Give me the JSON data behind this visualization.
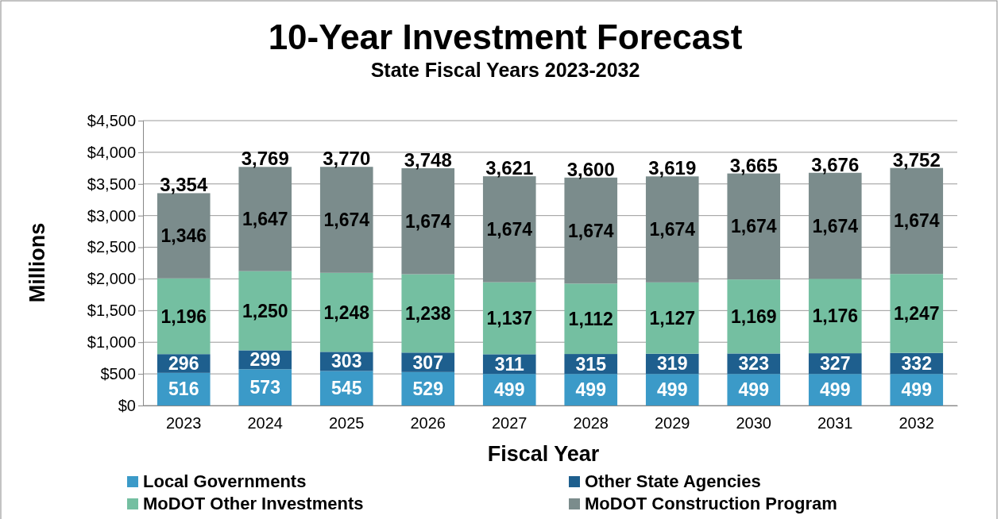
{
  "chart_data": {
    "type": "bar",
    "title": "10-Year Investment Forecast",
    "subtitle": "State Fiscal Years 2023-2032",
    "xlabel": "Fiscal Year",
    "ylabel": "Millions",
    "categories": [
      "2023",
      "2024",
      "2025",
      "2026",
      "2027",
      "2028",
      "2029",
      "2030",
      "2031",
      "2032"
    ],
    "stacked": true,
    "grid": "y",
    "legend": "bottom",
    "ylim": [
      0,
      4500
    ],
    "yticks": [
      {
        "value": 0,
        "label": "$0"
      },
      {
        "value": 500,
        "label": "$500"
      },
      {
        "value": 1000,
        "label": "$1,000"
      },
      {
        "value": 1500,
        "label": "$1,500"
      },
      {
        "value": 2000,
        "label": "$2,000"
      },
      {
        "value": 2500,
        "label": "$2,500"
      },
      {
        "value": 3000,
        "label": "$3,000"
      },
      {
        "value": 3500,
        "label": "$3,500"
      },
      {
        "value": 4000,
        "label": "$4,000"
      },
      {
        "value": 4500,
        "label": "$4,500"
      }
    ],
    "series": [
      {
        "name": "Local Governments",
        "color": "#3b9ac8",
        "values": [
          516,
          573,
          545,
          529,
          499,
          499,
          499,
          499,
          499,
          499
        ],
        "value_labels": [
          "516",
          "573",
          "545",
          "529",
          "499",
          "499",
          "499",
          "499",
          "499",
          "499"
        ]
      },
      {
        "name": "Other State Agencies",
        "color": "#1e5f8e",
        "values": [
          296,
          299,
          303,
          307,
          311,
          315,
          319,
          323,
          327,
          332
        ],
        "value_labels": [
          "296",
          "299",
          "303",
          "307",
          "311",
          "315",
          "319",
          "323",
          "327",
          "332"
        ]
      },
      {
        "name": "MoDOT Other Investments",
        "color": "#74bfa1",
        "values": [
          1196,
          1250,
          1248,
          1238,
          1137,
          1112,
          1127,
          1169,
          1176,
          1247
        ],
        "value_labels": [
          "1,196",
          "1,250",
          "1,248",
          "1,238",
          "1,137",
          "1,112",
          "1,127",
          "1,169",
          "1,176",
          "1,247"
        ]
      },
      {
        "name": "MoDOT Construction Program",
        "color": "#7b8c8c",
        "values": [
          1346,
          1647,
          1674,
          1674,
          1674,
          1674,
          1674,
          1674,
          1674,
          1674
        ],
        "value_labels": [
          "1,346",
          "1,647",
          "1,674",
          "1,674",
          "1,674",
          "1,674",
          "1,674",
          "1,674",
          "1,674",
          "1,674"
        ]
      }
    ],
    "totals": [
      "3,354",
      "3,769",
      "3,770",
      "3,748",
      "3,621",
      "3,600",
      "3,619",
      "3,665",
      "3,676",
      "3,752"
    ]
  }
}
